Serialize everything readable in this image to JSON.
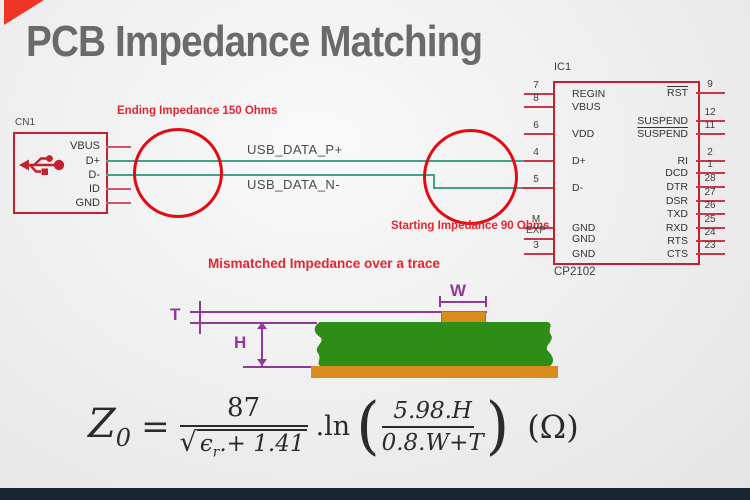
{
  "title": "PCB Impedance Matching",
  "colors": {
    "accent_red": "#ee3526",
    "schematic_red": "#c42130",
    "circle_red": "#e30b13",
    "annotation_red": "#e62530",
    "trace_teal": "#42a188",
    "dimension_purple": "#8f3a98",
    "copper_orange": "#d98b1e",
    "pcb_green": "#2e8d17",
    "title_gray": "#6a6a6a",
    "footer_navy": "#182634"
  },
  "connector": {
    "ref": "CN1",
    "usb_icon": "usb-trident-icon",
    "pins": [
      "VBUS",
      "D+",
      "D-",
      "ID",
      "GND"
    ]
  },
  "annotations": {
    "ending": "Ending Impedance 150 Ohms",
    "starting": "Starting Impedance 90 Ohms",
    "mismatch": "Mismatched Impedance over a trace"
  },
  "traces": {
    "p_label": "USB_DATA_P+",
    "n_label": "USB_DATA_N-"
  },
  "ic": {
    "ref": "IC1",
    "part": "CP2102",
    "pins_left": [
      {
        "num": "7",
        "name": "REGIN"
      },
      {
        "num": "8",
        "name": "VBUS"
      },
      {
        "num": "6",
        "name": "VDD"
      },
      {
        "num": "4",
        "name": "D+"
      },
      {
        "num": "5",
        "name": "D-"
      },
      {
        "num": "M",
        "name": "GND"
      },
      {
        "num": "EXP",
        "name": "GND"
      },
      {
        "num": "3",
        "name": "GND"
      }
    ],
    "pins_right": [
      {
        "num": "9",
        "name": "RST",
        "bar": true
      },
      {
        "num": "12",
        "name": "SUSPEND",
        "bar": false
      },
      {
        "num": "11",
        "name": "SUSPEND",
        "bar": true
      },
      {
        "num": "2",
        "name": "RI",
        "bar": false
      },
      {
        "num": "1",
        "name": "DCD",
        "bar": false
      },
      {
        "num": "28",
        "name": "DTR",
        "bar": false
      },
      {
        "num": "27",
        "name": "DSR",
        "bar": false
      },
      {
        "num": "26",
        "name": "TXD",
        "bar": false
      },
      {
        "num": "25",
        "name": "RXD",
        "bar": false
      },
      {
        "num": "24",
        "name": "RTS",
        "bar": false
      },
      {
        "num": "23",
        "name": "CTS",
        "bar": false
      }
    ]
  },
  "cross_section": {
    "w_label": "W",
    "t_label": "T",
    "h_label": "H"
  },
  "formula": {
    "lhs": "Z",
    "lhs_sub": "0",
    "equals": "=",
    "frac1_num": "87",
    "sqrt_sign": "√",
    "frac1_den_eps": "ϵ",
    "frac1_den_sub": "r",
    "frac1_den_rest": ".+ 1.41",
    "op": ".ln",
    "paren_open": "(",
    "paren_close": ")",
    "frac2_num": "5.98.H",
    "frac2_den": "0.8.W+T",
    "unit": "(Ω)"
  }
}
